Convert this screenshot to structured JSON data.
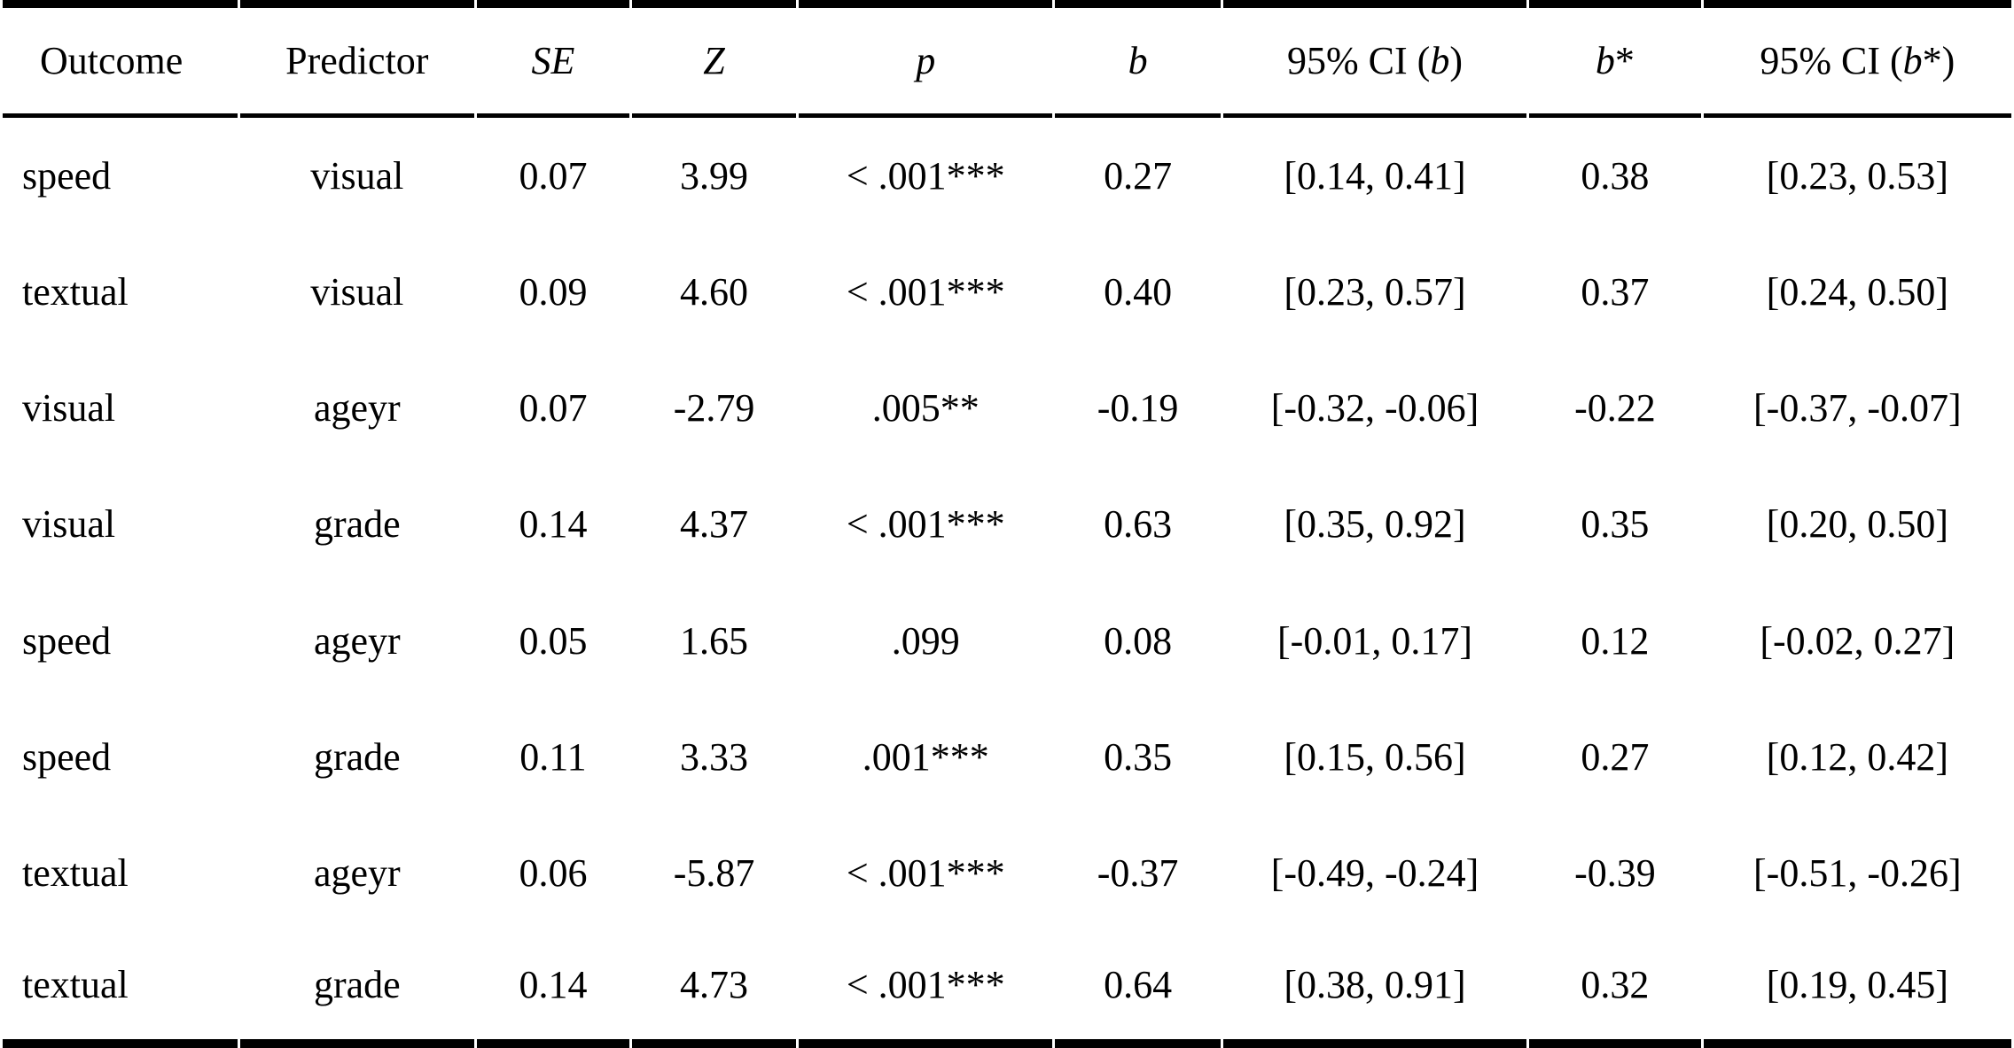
{
  "colors": {
    "text": "#000000",
    "background": "#ffffff",
    "rule": "#000000"
  },
  "table": {
    "columns": [
      {
        "key": "outcome",
        "segments": [
          {
            "text": "Outcome",
            "italic": false
          }
        ]
      },
      {
        "key": "predictor",
        "segments": [
          {
            "text": "Predictor",
            "italic": false
          }
        ]
      },
      {
        "key": "se",
        "segments": [
          {
            "text": "SE",
            "italic": true
          }
        ]
      },
      {
        "key": "z",
        "segments": [
          {
            "text": "Z",
            "italic": true
          }
        ]
      },
      {
        "key": "p",
        "segments": [
          {
            "text": "p",
            "italic": true
          }
        ]
      },
      {
        "key": "b",
        "segments": [
          {
            "text": "b",
            "italic": true
          }
        ]
      },
      {
        "key": "ci-b",
        "segments": [
          {
            "text": "95% CI (",
            "italic": false
          },
          {
            "text": "b",
            "italic": true
          },
          {
            "text": ")",
            "italic": false
          }
        ]
      },
      {
        "key": "b-star",
        "segments": [
          {
            "text": "b",
            "italic": true
          },
          {
            "text": "*",
            "italic": false
          }
        ]
      },
      {
        "key": "ci-b-star",
        "segments": [
          {
            "text": "95% CI (",
            "italic": false
          },
          {
            "text": "b",
            "italic": true
          },
          {
            "text": "*)",
            "italic": false
          }
        ]
      }
    ],
    "rows": [
      [
        "speed",
        "visual",
        "0.07",
        "3.99",
        "< .001***",
        "0.27",
        "[0.14, 0.41]",
        "0.38",
        "[0.23, 0.53]"
      ],
      [
        "textual",
        "visual",
        "0.09",
        "4.60",
        "< .001***",
        "0.40",
        "[0.23, 0.57]",
        "0.37",
        "[0.24, 0.50]"
      ],
      [
        "visual",
        "ageyr",
        "0.07",
        "-2.79",
        ".005**",
        "-0.19",
        "[-0.32, -0.06]",
        "-0.22",
        "[-0.37, -0.07]"
      ],
      [
        "visual",
        "grade",
        "0.14",
        "4.37",
        "< .001***",
        "0.63",
        "[0.35, 0.92]",
        "0.35",
        "[0.20, 0.50]"
      ],
      [
        "speed",
        "ageyr",
        "0.05",
        "1.65",
        ".099",
        "0.08",
        "[-0.01, 0.17]",
        "0.12",
        "[-0.02, 0.27]"
      ],
      [
        "speed",
        "grade",
        "0.11",
        "3.33",
        ".001***",
        "0.35",
        "[0.15, 0.56]",
        "0.27",
        "[0.12, 0.42]"
      ],
      [
        "textual",
        "ageyr",
        "0.06",
        "-5.87",
        "< .001***",
        "-0.37",
        "[-0.49, -0.24]",
        "-0.39",
        "[-0.51, -0.26]"
      ],
      [
        "textual",
        "grade",
        "0.14",
        "4.73",
        "< .001***",
        "0.64",
        "[0.38, 0.91]",
        "0.32",
        "[0.19, 0.45]"
      ]
    ]
  }
}
